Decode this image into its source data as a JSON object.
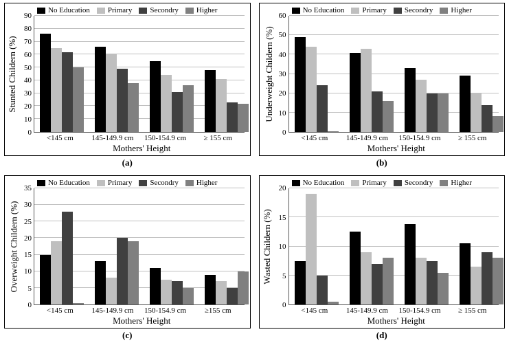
{
  "colors": {
    "series": [
      "#000000",
      "#bfbfbf",
      "#404040",
      "#808080"
    ],
    "grid": "#bfbfbf",
    "border": "#000000",
    "background": "#ffffff"
  },
  "series_labels": [
    "No Education",
    "Primary",
    "Secondry",
    "Higher"
  ],
  "categories": [
    "<145 cm",
    "145-149.9 cm",
    "150-154.9 cm",
    "≥ 155 cm"
  ],
  "categories_alt": [
    "<145 cm",
    "145-149.9 cm",
    "150-154.9 cm",
    "≥155 cm"
  ],
  "x_title": "Mothers' Height",
  "fontsizes": {
    "title": 13,
    "label": 13,
    "tick": 11,
    "legend": 11
  },
  "panels": [
    {
      "id": "a",
      "caption": "(a)",
      "y_title": "Stunted Childern (%)",
      "ylim": [
        0,
        90
      ],
      "ytick_step": 10,
      "data": [
        [
          76,
          65,
          62,
          50
        ],
        [
          66,
          60,
          49,
          38
        ],
        [
          55,
          44,
          31,
          36
        ],
        [
          48,
          41,
          23,
          22
        ]
      ],
      "categories_key": "categories"
    },
    {
      "id": "b",
      "caption": "(b)",
      "y_title": "Underweight Childern (%)",
      "ylim": [
        0,
        60
      ],
      "ytick_step": 10,
      "data": [
        [
          49,
          44,
          24,
          0.5
        ],
        [
          41,
          43,
          21,
          16
        ],
        [
          33,
          27,
          20,
          20
        ],
        [
          29,
          20,
          14,
          8
        ]
      ],
      "categories_key": "categories"
    },
    {
      "id": "c",
      "caption": "(c)",
      "y_title": "Overweight Childern (%)",
      "ylim": [
        0,
        35
      ],
      "ytick_step": 5,
      "data": [
        [
          15,
          19,
          28,
          0.5
        ],
        [
          13,
          8,
          20,
          19
        ],
        [
          11,
          7.5,
          7,
          5
        ],
        [
          9,
          7,
          5,
          10
        ]
      ],
      "categories_key": "categories_alt"
    },
    {
      "id": "d",
      "caption": "(d)",
      "y_title": "Wasted Childern (%)",
      "ylim": [
        0,
        20
      ],
      "ytick_step": 5,
      "data": [
        [
          7.5,
          19,
          5,
          0.5
        ],
        [
          12.5,
          9,
          7,
          8
        ],
        [
          13.8,
          8,
          7.5,
          5.5
        ],
        [
          10.5,
          6.5,
          9,
          8
        ]
      ],
      "categories_key": "categories"
    }
  ]
}
